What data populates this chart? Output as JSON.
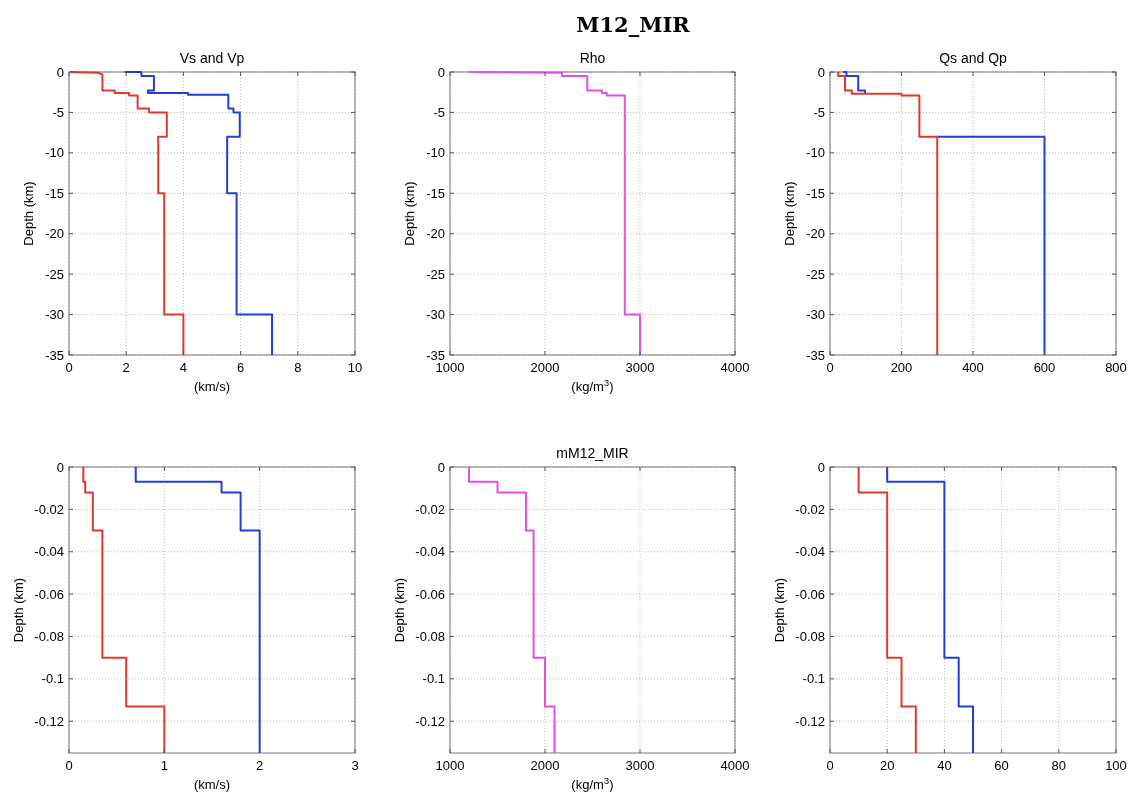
{
  "chart_data": [
    {
      "type": "line",
      "title": "Vs and Vp",
      "xlabel": "(km/s)",
      "ylabel": "Depth (km)",
      "annotations": [
        "M12_MIR"
      ],
      "xlim": [
        0,
        10
      ],
      "ylim": [
        -35,
        0
      ],
      "xticks": [
        0,
        2,
        4,
        6,
        8,
        10
      ],
      "yticks": [
        0,
        -5,
        -10,
        -15,
        -20,
        -25,
        -30,
        -35
      ],
      "grid": true,
      "series": [
        {
          "color": "#1f3fd8",
          "x": [
            1.95,
            2.53,
            2.53,
            2.97,
            2.97,
            2.76,
            2.76,
            4.16,
            4.16,
            5.57,
            5.57,
            5.75,
            5.75,
            5.97,
            5.97,
            5.53,
            5.53,
            5.86,
            5.86,
            7.1,
            7.1
          ],
          "values": [
            0,
            0,
            -0.5,
            -0.5,
            -2.3,
            -2.3,
            -2.6,
            -2.6,
            -2.8,
            -2.8,
            -4.5,
            -4.5,
            -5,
            -5,
            -8,
            -8,
            -15,
            -15,
            -30,
            -30,
            -35
          ]
        },
        {
          "color": "#e0382b",
          "x": [
            0.05,
            1.0,
            1.17,
            1.17,
            1.6,
            1.6,
            2.1,
            2.1,
            2.4,
            2.4,
            2.8,
            2.8,
            3.42,
            3.42,
            3.12,
            3.12,
            3.33,
            3.33,
            4.0,
            4.0
          ],
          "values": [
            0,
            -0.1,
            -0.3,
            -2.3,
            -2.3,
            -2.6,
            -2.6,
            -2.9,
            -2.9,
            -4.5,
            -4.5,
            -5,
            -5,
            -8,
            -8,
            -15,
            -15,
            -30,
            -30,
            -35
          ]
        }
      ]
    },
    {
      "type": "line",
      "title": "Rho",
      "xlabel": "(kg/m$^{3}$)",
      "ylabel": "Depth (km)",
      "xlim": [
        1000,
        4000
      ],
      "ylim": [
        -35,
        0
      ],
      "xticks": [
        1000,
        2000,
        3000,
        4000
      ],
      "yticks": [
        0,
        -5,
        -10,
        -15,
        -20,
        -25,
        -30,
        -35
      ],
      "grid": true,
      "series": [
        {
          "color": "#e050e8",
          "x": [
            1200,
            2180,
            2180,
            2445,
            2445,
            2600,
            2600,
            2650,
            2650,
            2840,
            2840,
            3000,
            3000
          ],
          "values": [
            0,
            -0.1,
            -0.5,
            -0.5,
            -2.3,
            -2.3,
            -2.6,
            -2.6,
            -2.9,
            -2.9,
            -30,
            -30,
            -35
          ]
        }
      ]
    },
    {
      "type": "line",
      "title": "Qs and Qp",
      "ylabel": "Depth (km)",
      "xlim": [
        0,
        800
      ],
      "ylim": [
        -35,
        0
      ],
      "xticks": [
        0,
        200,
        400,
        600,
        800
      ],
      "yticks": [
        0,
        -5,
        -10,
        -15,
        -20,
        -25,
        -30,
        -35
      ],
      "grid": true,
      "series": [
        {
          "color": "#1f3fd8",
          "x": [
            37,
            46,
            46,
            79,
            79,
            98,
            98,
            null,
            300,
            600,
            600
          ],
          "values": [
            0,
            0,
            -0.5,
            -0.5,
            -2.3,
            -2.3,
            -2.7,
            null,
            -8,
            -8,
            -35
          ]
        },
        {
          "color": "#e0382b",
          "x": [
            23,
            23,
            42,
            42,
            61,
            61,
            200,
            200,
            250,
            250,
            300,
            300
          ],
          "values": [
            0,
            -0.5,
            -0.5,
            -2.3,
            -2.3,
            -2.7,
            -2.7,
            -2.9,
            -2.9,
            -8,
            -8,
            -35
          ]
        }
      ]
    },
    {
      "type": "line",
      "xlabel": "(km/s)",
      "ylabel": "Depth (km)",
      "xlim": [
        0,
        3
      ],
      "ylim": [
        -0.135,
        0
      ],
      "xticks": [
        0,
        1,
        2,
        3
      ],
      "yticks": [
        0,
        -0.02,
        -0.04,
        -0.06,
        -0.08,
        -0.1,
        -0.12
      ],
      "grid": true,
      "series": [
        {
          "color": "#1f3fd8",
          "x": [
            0.7,
            0.7,
            1.6,
            1.6,
            1.8,
            1.8,
            2.0,
            2.0
          ],
          "values": [
            0,
            -0.007,
            -0.007,
            -0.012,
            -0.012,
            -0.03,
            -0.03,
            -0.135
          ]
        },
        {
          "color": "#e0382b",
          "x": [
            0.15,
            0.15,
            0.17,
            0.17,
            0.25,
            0.25,
            0.35,
            0.35,
            0.6,
            0.6,
            1.0,
            1.0
          ],
          "values": [
            0,
            -0.007,
            -0.007,
            -0.012,
            -0.012,
            -0.03,
            -0.03,
            -0.09,
            -0.09,
            -0.113,
            -0.113,
            -0.135
          ]
        }
      ]
    },
    {
      "type": "line",
      "title": "mM12_MIR",
      "xlabel": "(kg/m$^{3}$)",
      "ylabel": "Depth (km)",
      "xlim": [
        1000,
        4000
      ],
      "ylim": [
        -0.135,
        0
      ],
      "xticks": [
        1000,
        2000,
        3000,
        4000
      ],
      "yticks": [
        0,
        -0.02,
        -0.04,
        -0.06,
        -0.08,
        -0.1,
        -0.12
      ],
      "grid": true,
      "series": [
        {
          "color": "#e050e8",
          "x": [
            1200,
            1200,
            1500,
            1500,
            1800,
            1800,
            1880,
            1880,
            2000,
            2000,
            2100,
            2100
          ],
          "values": [
            0,
            -0.007,
            -0.007,
            -0.012,
            -0.012,
            -0.03,
            -0.03,
            -0.09,
            -0.09,
            -0.113,
            -0.113,
            -0.135
          ]
        }
      ]
    },
    {
      "type": "line",
      "ylabel": "Depth (km)",
      "xlim": [
        0,
        100
      ],
      "ylim": [
        -0.135,
        0
      ],
      "xticks": [
        0,
        20,
        40,
        60,
        80,
        100
      ],
      "yticks": [
        0,
        -0.02,
        -0.04,
        -0.06,
        -0.08,
        -0.1,
        -0.12
      ],
      "grid": true,
      "series": [
        {
          "color": "#1f3fd8",
          "x": [
            20,
            20,
            40,
            40,
            45,
            45,
            50,
            50
          ],
          "values": [
            0,
            -0.007,
            -0.007,
            -0.09,
            -0.09,
            -0.113,
            -0.113,
            -0.135
          ]
        },
        {
          "color": "#e0382b",
          "x": [
            10,
            10,
            20,
            20,
            25,
            25,
            30,
            30
          ],
          "values": [
            0,
            -0.012,
            -0.012,
            -0.09,
            -0.09,
            -0.113,
            -0.113,
            -0.135
          ]
        }
      ]
    }
  ]
}
